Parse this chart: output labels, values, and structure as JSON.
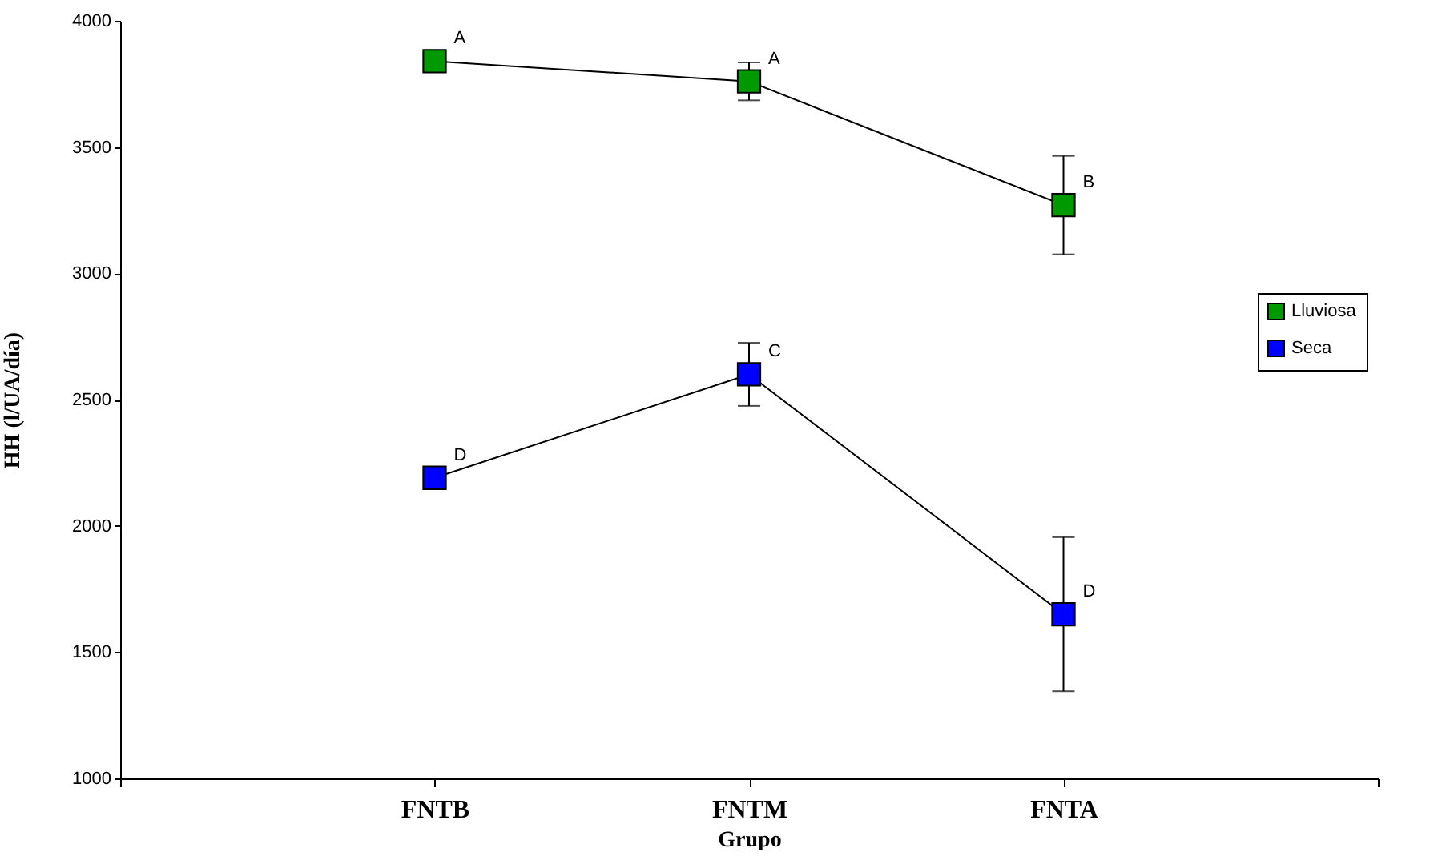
{
  "chart_data": {
    "type": "line",
    "xlabel": "Grupo",
    "ylabel": "HH (l/UA/día)",
    "categories": [
      null,
      "FNTB",
      "FNTM",
      "FNTA",
      null
    ],
    "series": [
      {
        "name": "Lluviosa",
        "color": "#009900",
        "values": [
          null,
          3840,
          3760,
          3270,
          null
        ],
        "errors": [
          null,
          null,
          75,
          195,
          null
        ]
      },
      {
        "name": "Seca",
        "color": "#0000ff",
        "values": [
          null,
          2190,
          2600,
          1650,
          null
        ],
        "errors": [
          null,
          null,
          125,
          305,
          null
        ]
      }
    ],
    "ylim": [
      1000,
      4000
    ],
    "yticks": [
      1000,
      1500,
      2000,
      2500,
      3000,
      3500,
      4000
    ],
    "marker": "square",
    "line_style": "solid",
    "legend": "right",
    "grid": false,
    "annotations": [
      {
        "text": "A",
        "x": "FNTB",
        "y": 3840
      },
      {
        "text": "A",
        "x": "FNTM",
        "y": 3760
      },
      {
        "text": "B",
        "x": "FNTA",
        "y": 3270
      },
      {
        "text": "D",
        "x": "FNTB",
        "y": 2190
      },
      {
        "text": "C",
        "x": "FNTM",
        "y": 2600
      },
      {
        "text": "D",
        "x": "FNTA",
        "y": 1650
      }
    ]
  }
}
